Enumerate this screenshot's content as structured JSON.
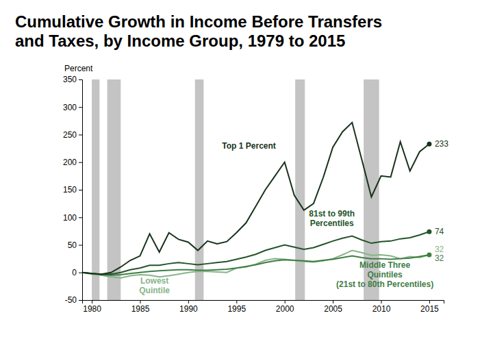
{
  "chart_data": {
    "type": "line",
    "title": "Cumulative Growth in Income Before Transfers\nand Taxes, by Income Group, 1979 to 2015",
    "y_label": "Percent",
    "x": [
      1979,
      1980,
      1981,
      1982,
      1983,
      1984,
      1985,
      1986,
      1987,
      1988,
      1989,
      1990,
      1991,
      1992,
      1993,
      1994,
      1995,
      1996,
      1997,
      1998,
      1999,
      2000,
      2001,
      2002,
      2003,
      2004,
      2005,
      2006,
      2007,
      2008,
      2009,
      2010,
      2011,
      2012,
      2013,
      2014,
      2015
    ],
    "xlim": [
      1979,
      2016.5
    ],
    "xticks": [
      1980,
      1985,
      1990,
      1995,
      2000,
      2005,
      2010,
      2015
    ],
    "ylim": [
      -50,
      350
    ],
    "yticks": [
      -50,
      0,
      50,
      100,
      150,
      200,
      250,
      300,
      350
    ],
    "grid": false,
    "recessions": [
      [
        1980.0,
        1980.8
      ],
      [
        1981.6,
        1983.0
      ],
      [
        1990.7,
        1991.6
      ],
      [
        2001.1,
        2002.1
      ],
      [
        2008.2,
        2009.8
      ]
    ],
    "series": [
      {
        "name": "Top 1 Percent",
        "color": "#17321a",
        "marker": "end",
        "values": [
          0,
          -2,
          -3,
          0,
          10,
          22,
          30,
          70,
          37,
          72,
          60,
          55,
          40,
          57,
          52,
          56,
          72,
          90,
          120,
          150,
          175,
          200,
          140,
          113,
          125,
          172,
          227,
          255,
          272,
          205,
          137,
          175,
          173,
          237,
          184,
          219,
          233
        ],
        "value_labels": [
          null,
          null,
          null,
          null,
          null,
          null,
          null,
          null,
          null,
          null,
          null,
          null,
          null,
          null,
          null,
          null,
          null,
          null,
          null,
          null,
          null,
          null,
          null,
          null,
          null,
          null,
          null,
          null,
          null,
          null,
          null,
          null,
          null,
          null,
          null,
          null,
          "233"
        ]
      },
      {
        "name": "81st to 99th\nPercentiles",
        "color": "#23532a",
        "marker": "end",
        "values": [
          0,
          -2,
          -3,
          -3,
          0,
          5,
          8,
          13,
          13,
          16,
          18,
          16,
          14,
          16,
          18,
          20,
          24,
          28,
          33,
          40,
          45,
          50,
          46,
          42,
          45,
          51,
          57,
          62,
          66,
          59,
          53,
          56,
          57,
          61,
          63,
          68,
          74
        ],
        "value_labels": [
          null,
          null,
          null,
          null,
          null,
          null,
          null,
          null,
          null,
          null,
          null,
          null,
          null,
          null,
          null,
          null,
          null,
          null,
          null,
          null,
          null,
          null,
          null,
          null,
          null,
          null,
          null,
          null,
          null,
          null,
          null,
          null,
          null,
          null,
          null,
          null,
          "74"
        ]
      },
      {
        "name": "Middle Three\nQuintiles\n(21st to 80th Percentiles)",
        "color": "#3f7d45",
        "marker": "end",
        "values": [
          0,
          -2,
          -4,
          -5,
          -4,
          -2,
          0,
          2,
          3,
          4,
          5,
          5,
          4,
          4,
          5,
          6,
          8,
          11,
          14,
          18,
          21,
          23,
          22,
          21,
          20,
          22,
          24,
          27,
          30,
          27,
          25,
          25,
          24,
          25,
          26,
          29,
          32
        ],
        "value_labels": [
          null,
          null,
          null,
          null,
          null,
          null,
          null,
          null,
          null,
          null,
          null,
          null,
          null,
          null,
          null,
          null,
          null,
          null,
          null,
          null,
          null,
          null,
          null,
          null,
          null,
          null,
          null,
          null,
          null,
          null,
          null,
          null,
          null,
          null,
          null,
          null,
          "32"
        ]
      },
      {
        "name": "Lowest\nQuintile",
        "color": "#86b487",
        "marker": "none",
        "values": [
          0,
          -3,
          -5,
          -8,
          -10,
          -6,
          -4,
          -5,
          -8,
          -6,
          -3,
          0,
          2,
          2,
          1,
          0,
          8,
          10,
          15,
          22,
          25,
          24,
          22,
          20,
          19,
          21,
          25,
          32,
          40,
          36,
          31,
          32,
          30,
          25,
          29,
          27,
          32
        ],
        "value_labels": [
          null,
          null,
          null,
          null,
          null,
          null,
          null,
          null,
          null,
          null,
          null,
          null,
          null,
          null,
          null,
          null,
          null,
          null,
          null,
          null,
          null,
          null,
          null,
          null,
          null,
          null,
          null,
          null,
          null,
          null,
          null,
          null,
          null,
          null,
          null,
          null,
          "32"
        ]
      }
    ]
  }
}
